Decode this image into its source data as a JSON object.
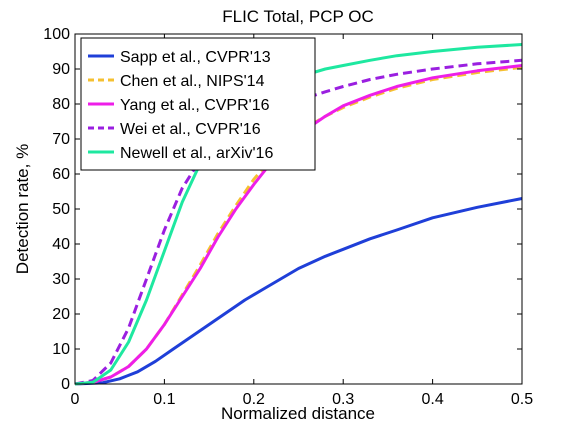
{
  "chart_data": {
    "type": "line",
    "title": "FLIC Total, PCP OC",
    "xlabel": "Normalized distance",
    "ylabel": "Detection rate, %",
    "xlim": [
      0,
      0.5
    ],
    "ylim": [
      0,
      100
    ],
    "xticks": [
      0,
      0.1,
      0.2,
      0.3,
      0.4,
      0.5
    ],
    "xtick_labels": [
      "0",
      "0.1",
      "0.2",
      "0.3",
      "0.4",
      "0.5"
    ],
    "yticks": [
      0,
      10,
      20,
      30,
      40,
      50,
      60,
      70,
      80,
      90,
      100
    ],
    "ytick_labels": [
      "0",
      "10",
      "20",
      "30",
      "40",
      "50",
      "60",
      "70",
      "80",
      "90",
      "100"
    ],
    "grid": false,
    "legend_position": "top-left",
    "series": [
      {
        "name": "Sapp et al., CVPR'13",
        "color": "#1f3fd8",
        "dash": "solid",
        "x": [
          0,
          0.03,
          0.05,
          0.07,
          0.09,
          0.11,
          0.13,
          0.15,
          0.17,
          0.19,
          0.21,
          0.23,
          0.25,
          0.28,
          0.3,
          0.33,
          0.36,
          0.4,
          0.45,
          0.5
        ],
        "y": [
          0,
          0.3,
          1.5,
          3.5,
          6.5,
          10,
          13.5,
          17,
          20.5,
          24,
          27,
          30,
          33,
          36.5,
          38.5,
          41.5,
          44,
          47.5,
          50.5,
          53
        ]
      },
      {
        "name": "Chen et al., NIPS'14",
        "color": "#f5c030",
        "dash": "dashed",
        "x": [
          0,
          0.02,
          0.04,
          0.06,
          0.08,
          0.1,
          0.12,
          0.14,
          0.16,
          0.18,
          0.2,
          0.22,
          0.24,
          0.26,
          0.28,
          0.3,
          0.33,
          0.36,
          0.4,
          0.45,
          0.5
        ],
        "y": [
          0,
          0.5,
          2,
          5,
          10,
          17,
          25.5,
          34,
          43,
          51,
          58.5,
          64.5,
          69.5,
          73.5,
          76.5,
          79,
          82,
          84.5,
          87,
          89,
          90.5
        ]
      },
      {
        "name": "Yang et al., CVPR'16",
        "color": "#ee1ee8",
        "dash": "solid",
        "x": [
          0,
          0.02,
          0.04,
          0.06,
          0.08,
          0.1,
          0.12,
          0.14,
          0.16,
          0.18,
          0.2,
          0.22,
          0.24,
          0.26,
          0.28,
          0.3,
          0.33,
          0.36,
          0.4,
          0.45,
          0.5
        ],
        "y": [
          0,
          0.5,
          2,
          5,
          10,
          17,
          25,
          33,
          42,
          50,
          57,
          63.5,
          68.5,
          73,
          76.5,
          79.5,
          82.5,
          85,
          87.5,
          89.5,
          91
        ]
      },
      {
        "name": "Wei et al., CVPR'16",
        "color": "#9a1fe0",
        "dash": "dashed",
        "x": [
          0,
          0.02,
          0.04,
          0.06,
          0.08,
          0.1,
          0.12,
          0.14,
          0.16,
          0.18,
          0.2,
          0.22,
          0.25,
          0.28,
          0.3,
          0.33,
          0.36,
          0.4,
          0.45,
          0.5
        ],
        "y": [
          0,
          1,
          6,
          16,
          30,
          44,
          56,
          64,
          69,
          72.5,
          75.5,
          78,
          81,
          83.5,
          85,
          87,
          88.5,
          90,
          91.5,
          92.5
        ]
      },
      {
        "name": "Newell et al., arXiv'16",
        "color": "#1ee8a0",
        "dash": "solid",
        "x": [
          0,
          0.02,
          0.04,
          0.06,
          0.08,
          0.1,
          0.12,
          0.14,
          0.16,
          0.18,
          0.2,
          0.22,
          0.24,
          0.26,
          0.28,
          0.3,
          0.33,
          0.36,
          0.4,
          0.45,
          0.5
        ],
        "y": [
          0,
          0.5,
          4,
          12,
          24,
          38,
          52,
          63,
          70.5,
          76,
          80.5,
          84,
          86.5,
          88.5,
          90,
          91,
          92.5,
          93.8,
          95,
          96.2,
          97
        ]
      }
    ]
  }
}
